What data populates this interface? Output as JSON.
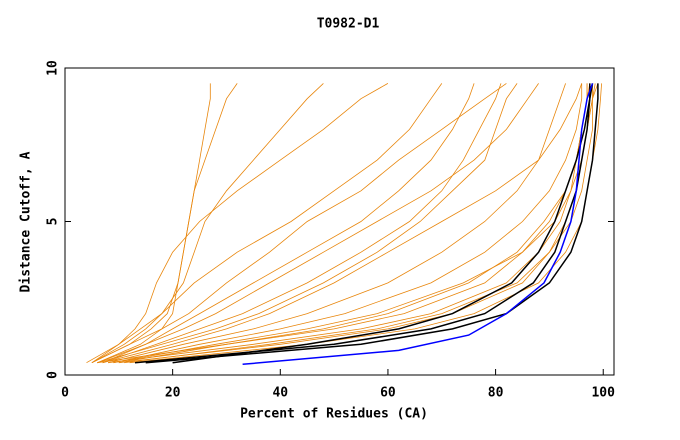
{
  "chart_data": {
    "type": "line",
    "title": "T0982-D1",
    "x_label": "Percent of Residues (CA)",
    "y_label": "Distance Cutoff, A",
    "xlim": [
      0,
      102
    ],
    "ylim": [
      0,
      10
    ],
    "xticks": [
      0,
      20,
      40,
      60,
      80,
      100
    ],
    "yticks": [
      0,
      5,
      10
    ],
    "series": [
      {
        "color": "#e8860c",
        "x": [
          10,
          40,
          60,
          72,
          85,
          90,
          93,
          95,
          96,
          97,
          98,
          98.5
        ],
        "values": [
          0.4,
          1,
          1.5,
          2,
          3,
          4,
          5,
          6,
          7,
          8,
          9,
          9.5
        ]
      },
      {
        "color": "#e8860c",
        "x": [
          8,
          35,
          55,
          68,
          82,
          88,
          92,
          94,
          95,
          96,
          97,
          97.5
        ],
        "values": [
          0.4,
          1,
          1.5,
          2,
          3,
          4,
          5,
          6,
          7,
          8,
          9,
          9.5
        ]
      },
      {
        "color": "#e8860c",
        "x": [
          12,
          45,
          65,
          76,
          88,
          93,
          96,
          97,
          98,
          99,
          99.5,
          99.7
        ],
        "values": [
          0.4,
          1,
          1.5,
          2,
          3,
          4,
          5,
          6,
          7,
          8,
          9,
          9.5
        ]
      },
      {
        "color": "#e8860c",
        "x": [
          6,
          30,
          50,
          63,
          78,
          85,
          90,
          93,
          95,
          96,
          97,
          97
        ],
        "values": [
          0.4,
          1,
          1.5,
          2,
          3,
          4,
          5,
          6,
          7,
          8,
          9,
          9.5
        ]
      },
      {
        "color": "#e8860c",
        "x": [
          9,
          25,
          40,
          52,
          68,
          78,
          85,
          90,
          93,
          95,
          96,
          96
        ],
        "values": [
          0.4,
          1,
          1.5,
          2,
          3,
          4,
          5,
          6,
          7,
          8,
          9,
          9.5
        ]
      },
      {
        "color": "#e8860c",
        "x": [
          7,
          20,
          30,
          38,
          50,
          60,
          70,
          80,
          88,
          92,
          95,
          96
        ],
        "values": [
          0.4,
          1,
          1.5,
          2,
          3,
          4,
          5,
          6,
          7,
          8,
          9,
          9.5
        ]
      },
      {
        "color": "#e8860c",
        "x": [
          6,
          15,
          22,
          28,
          38,
          48,
          58,
          68,
          76,
          82,
          86,
          88
        ],
        "values": [
          0.4,
          1,
          1.5,
          2,
          3,
          4,
          5,
          6,
          7,
          8,
          9,
          9.5
        ]
      },
      {
        "color": "#e8860c",
        "x": [
          5,
          12,
          18,
          23,
          30,
          38,
          45,
          55,
          62,
          70,
          78,
          82
        ],
        "values": [
          0.4,
          1,
          1.5,
          2,
          3,
          4,
          5,
          6,
          7,
          8,
          9,
          9.5
        ]
      },
      {
        "color": "#e8860c",
        "x": [
          4,
          10,
          14,
          18,
          22,
          24,
          26,
          30,
          35,
          40,
          45,
          48
        ],
        "values": [
          0.4,
          1,
          1.5,
          2,
          3,
          4,
          5,
          6,
          7,
          8,
          9,
          9.5
        ]
      },
      {
        "color": "#e8860c",
        "x": [
          5,
          12,
          16,
          19,
          21,
          22,
          23,
          24,
          25,
          26,
          27,
          27
        ],
        "values": [
          0.4,
          1,
          1.5,
          2,
          3,
          4,
          5,
          6,
          7,
          8,
          9,
          9.5
        ]
      },
      {
        "color": "#e8860c",
        "x": [
          6,
          14,
          18,
          20,
          21,
          22,
          23,
          24,
          26,
          28,
          30,
          32
        ],
        "values": [
          0.4,
          1,
          1.5,
          2,
          3,
          4,
          5,
          6,
          7,
          8,
          9,
          9.5
        ]
      },
      {
        "color": "#e8860c",
        "x": [
          7,
          15,
          20,
          25,
          35,
          45,
          55,
          62,
          68,
          72,
          75,
          76
        ],
        "values": [
          0.4,
          1,
          1.5,
          2,
          3,
          4,
          5,
          6,
          7,
          8,
          9,
          9.5
        ]
      },
      {
        "color": "#e8860c",
        "x": [
          8,
          22,
          35,
          45,
          60,
          70,
          78,
          84,
          88,
          90,
          92,
          93
        ],
        "values": [
          0.4,
          1,
          1.5,
          2,
          3,
          4,
          5,
          6,
          7,
          8,
          9,
          9.5
        ]
      },
      {
        "color": "#e8860c",
        "x": [
          10,
          30,
          48,
          60,
          75,
          84,
          89,
          93,
          95,
          96,
          97,
          97
        ],
        "values": [
          0.4,
          1,
          1.5,
          2,
          3,
          4,
          5,
          6,
          7,
          8,
          9,
          9.5
        ]
      },
      {
        "color": "#e8860c",
        "x": [
          6,
          18,
          28,
          36,
          48,
          58,
          66,
          72,
          78,
          80,
          82,
          84
        ],
        "values": [
          0.4,
          1,
          1.5,
          2,
          3,
          4,
          5,
          6,
          7,
          8,
          9,
          9.5
        ]
      },
      {
        "color": "#e8860c",
        "x": [
          5,
          10,
          13,
          15,
          17,
          20,
          25,
          32,
          40,
          48,
          55,
          60
        ],
        "values": [
          0.4,
          1,
          1.5,
          2,
          3,
          4,
          5,
          6,
          7,
          8,
          9,
          9.5
        ]
      },
      {
        "color": "#e8860c",
        "x": [
          7,
          17,
          25,
          33,
          45,
          55,
          64,
          70,
          74,
          77,
          80,
          81
        ],
        "values": [
          0.4,
          1,
          1.5,
          2,
          3,
          4,
          5,
          6,
          7,
          8,
          9,
          9.5
        ]
      },
      {
        "color": "#e8860c",
        "x": [
          9,
          28,
          45,
          58,
          74,
          85,
          91,
          94,
          96,
          97,
          98,
          98
        ],
        "values": [
          0.4,
          1,
          1.5,
          2,
          3,
          4,
          5,
          6,
          7,
          8,
          9,
          9.5
        ]
      },
      {
        "color": "#e8860c",
        "x": [
          11,
          38,
          58,
          70,
          84,
          90,
          94,
          96,
          97,
          98,
          98,
          99
        ],
        "values": [
          0.4,
          1,
          1.5,
          2,
          3,
          4,
          5,
          6,
          7,
          8,
          9,
          9.5
        ]
      },
      {
        "color": "#e8860c",
        "x": [
          5,
          11,
          15,
          18,
          24,
          32,
          42,
          50,
          58,
          64,
          68,
          70
        ],
        "values": [
          0.4,
          1,
          1.5,
          2,
          3,
          4,
          5,
          6,
          7,
          8,
          9,
          9.5
        ]
      },
      {
        "color": "#000000",
        "x": [
          13,
          50,
          68,
          78,
          87,
          91,
          93,
          95,
          96,
          97,
          97.5,
          97.5
        ],
        "values": [
          0.4,
          1,
          1.5,
          2,
          3,
          4,
          5,
          6,
          7,
          8,
          9,
          9.5
        ]
      },
      {
        "color": "#000000",
        "x": [
          15,
          55,
          72,
          82,
          90,
          94,
          96,
          97,
          98,
          98.5,
          99,
          99
        ],
        "values": [
          0.4,
          1,
          1.5,
          2,
          3,
          4,
          5,
          6,
          7,
          8,
          9,
          9.5
        ]
      },
      {
        "color": "#000000",
        "x": [
          20,
          45,
          62,
          72,
          83,
          88,
          91,
          93,
          95,
          96.5,
          97.5,
          98
        ],
        "values": [
          0.4,
          1,
          1.5,
          2,
          3,
          4,
          5,
          6,
          7,
          8,
          9,
          9.5
        ]
      },
      {
        "color": "#0000ff",
        "x": [
          33,
          62,
          75,
          82,
          89,
          92,
          94,
          95,
          95.5,
          96,
          97,
          98
        ],
        "values": [
          0.35,
          0.8,
          1.3,
          2,
          3,
          4,
          5,
          6,
          7,
          8,
          9,
          9.5
        ]
      }
    ]
  }
}
